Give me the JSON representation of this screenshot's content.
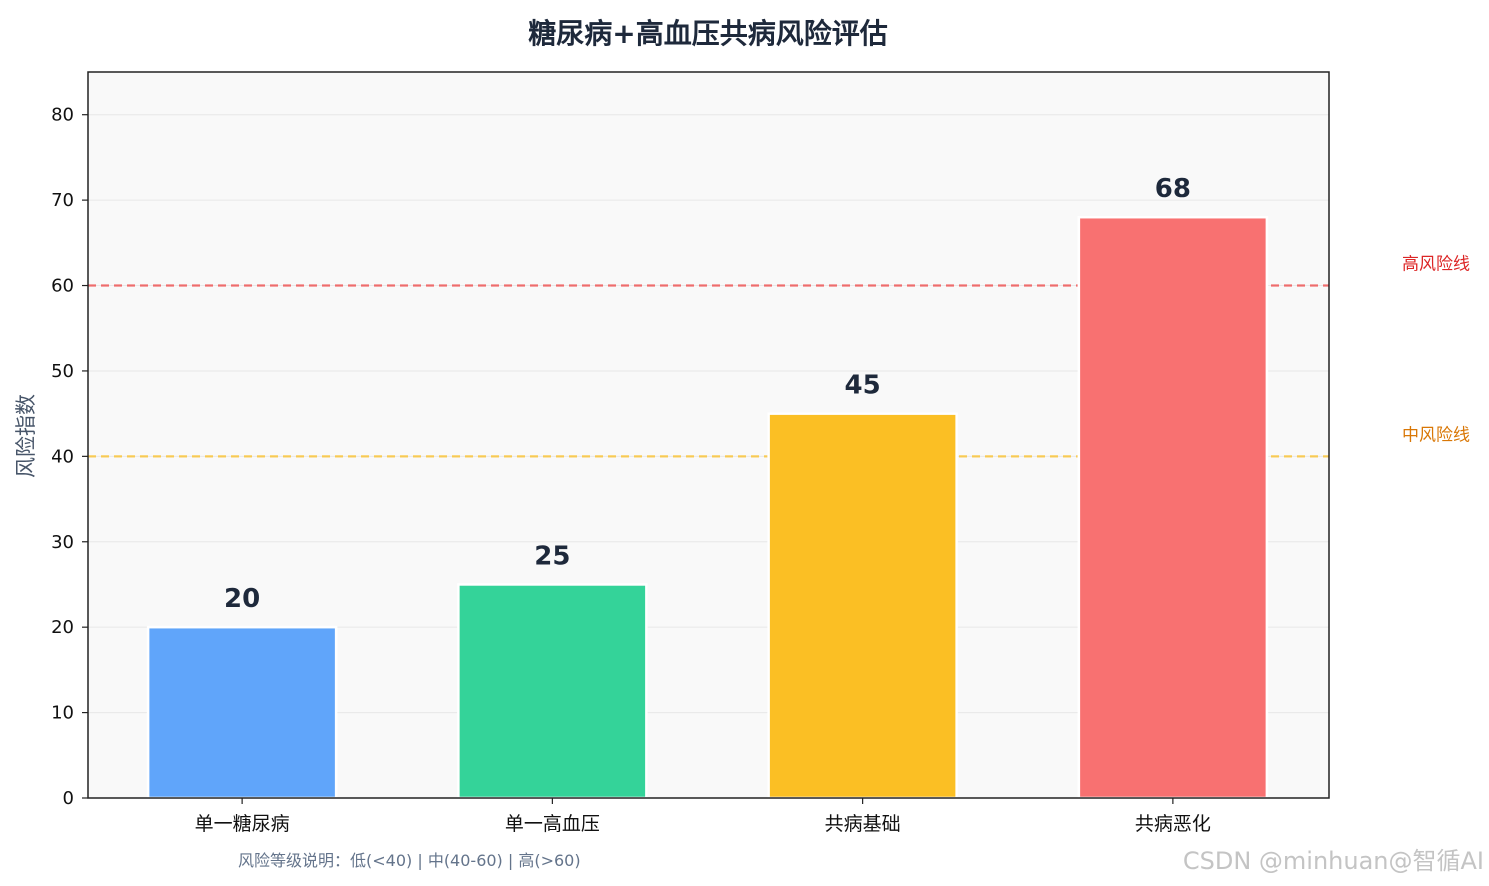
{
  "chart_data": {
    "type": "bar",
    "title": "糖尿病+高血压共病风险评估",
    "xlabel": "",
    "ylabel": "风险指数",
    "categories": [
      "单一糖尿病",
      "单一高血压",
      "共病基础",
      "共病恶化"
    ],
    "values": [
      20,
      25,
      45,
      68
    ],
    "value_labels": [
      "20",
      "25",
      "45",
      "68"
    ],
    "bar_colors": [
      "#60a5fa",
      "#34d399",
      "#fbbf24",
      "#f87171"
    ],
    "ylim": [
      0,
      85
    ],
    "yticks": [
      0,
      10,
      20,
      30,
      40,
      50,
      60,
      70,
      80
    ],
    "grid": true,
    "thresholds": [
      {
        "label": "高风险线",
        "value": 60,
        "color": "#ef4444",
        "text_color": "#dc2626"
      },
      {
        "label": "中风险线",
        "value": 40,
        "color": "#fbbf24",
        "text_color": "#d97706"
      }
    ],
    "footnote": "风险等级说明：低(<40) | 中(40-60) | 高(>60)"
  },
  "watermark": "CSDN @minhuan@智循AI"
}
